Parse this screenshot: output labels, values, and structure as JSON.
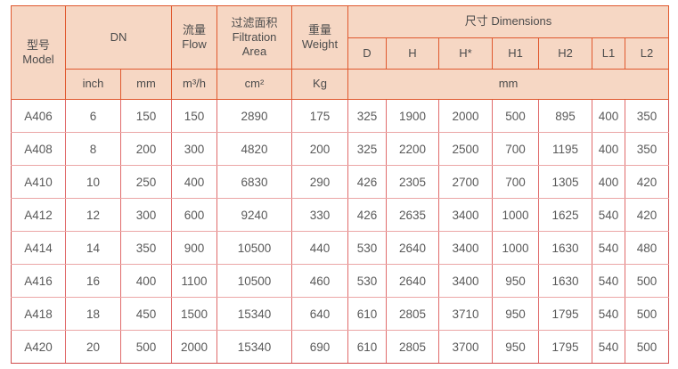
{
  "table": {
    "header": {
      "model": {
        "zh": "型号",
        "en": "Model"
      },
      "dn": "DN",
      "flow": {
        "zh": "流量",
        "en": "Flow"
      },
      "filtration": {
        "zh": "过滤面积",
        "en": "Filtration Area"
      },
      "weight": {
        "zh": "重量",
        "en": "Weight"
      },
      "dimensions": "尺寸 Dimensions",
      "dim_cols": [
        "D",
        "H",
        "H*",
        "H1",
        "H2",
        "L1",
        "L2"
      ],
      "units": {
        "inch": "inch",
        "mm": "mm",
        "flow": "m³/h",
        "area": "cm²",
        "weight": "Kg",
        "dim": "mm"
      }
    },
    "rows": [
      [
        "A406",
        "6",
        "150",
        "150",
        "2890",
        "175",
        "325",
        "1900",
        "2000",
        "500",
        "895",
        "400",
        "350"
      ],
      [
        "A408",
        "8",
        "200",
        "300",
        "4820",
        "200",
        "325",
        "2200",
        "2500",
        "700",
        "1195",
        "400",
        "350"
      ],
      [
        "A410",
        "10",
        "250",
        "400",
        "6830",
        "290",
        "426",
        "2305",
        "2700",
        "700",
        "1305",
        "400",
        "420"
      ],
      [
        "A412",
        "12",
        "300",
        "600",
        "9240",
        "330",
        "426",
        "2635",
        "3400",
        "1000",
        "1625",
        "540",
        "420"
      ],
      [
        "A414",
        "14",
        "350",
        "900",
        "10500",
        "440",
        "530",
        "2640",
        "3400",
        "1000",
        "1630",
        "540",
        "480"
      ],
      [
        "A416",
        "16",
        "400",
        "1100",
        "10500",
        "460",
        "530",
        "2640",
        "3400",
        "950",
        "1630",
        "540",
        "500"
      ],
      [
        "A418",
        "18",
        "450",
        "1500",
        "15340",
        "640",
        "610",
        "2805",
        "3710",
        "950",
        "1795",
        "540",
        "500"
      ],
      [
        "A420",
        "20",
        "500",
        "2000",
        "15340",
        "690",
        "610",
        "2805",
        "3700",
        "950",
        "1795",
        "540",
        "500"
      ]
    ],
    "colors": {
      "header_bg": "#f6d7c4",
      "header_border": "#e0582e",
      "grid_vertical": "#e06b6b",
      "grid_horizontal": "#eba6a6",
      "outer_border": "#d25050",
      "header_text": "#4c4c4c",
      "body_text": "#595959"
    }
  }
}
